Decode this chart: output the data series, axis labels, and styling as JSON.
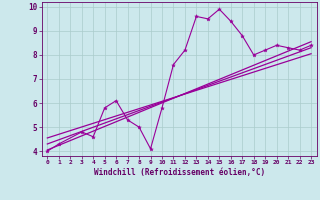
{
  "xlabel": "Windchill (Refroidissement éolien,°C)",
  "xlim": [
    -0.5,
    23.5
  ],
  "ylim": [
    3.8,
    10.2
  ],
  "xticks": [
    0,
    1,
    2,
    3,
    4,
    5,
    6,
    7,
    8,
    9,
    10,
    11,
    12,
    13,
    14,
    15,
    16,
    17,
    18,
    19,
    20,
    21,
    22,
    23
  ],
  "yticks": [
    4,
    5,
    6,
    7,
    8,
    9,
    10
  ],
  "main_x": [
    0,
    1,
    3,
    4,
    5,
    6,
    7,
    8,
    9,
    10,
    11,
    12,
    13,
    14,
    15,
    16,
    17,
    18,
    19,
    20,
    21,
    22,
    23
  ],
  "main_y": [
    4.0,
    4.3,
    4.8,
    4.6,
    5.8,
    6.1,
    5.3,
    5.0,
    4.1,
    5.8,
    7.6,
    8.2,
    9.6,
    9.5,
    9.9,
    9.4,
    8.8,
    8.0,
    8.2,
    8.4,
    8.3,
    8.2,
    8.4
  ],
  "line_color": "#990099",
  "bg_color": "#cce8ec",
  "grid_color": "#aacccc",
  "tick_label_color": "#660066",
  "axis_label_color": "#660066",
  "regression_lines": [
    {
      "x0": 0,
      "y0": 4.05,
      "x1": 23,
      "y1": 8.55
    },
    {
      "x0": 0,
      "y0": 4.3,
      "x1": 23,
      "y1": 8.3
    },
    {
      "x0": 0,
      "y0": 4.55,
      "x1": 23,
      "y1": 8.05
    }
  ]
}
